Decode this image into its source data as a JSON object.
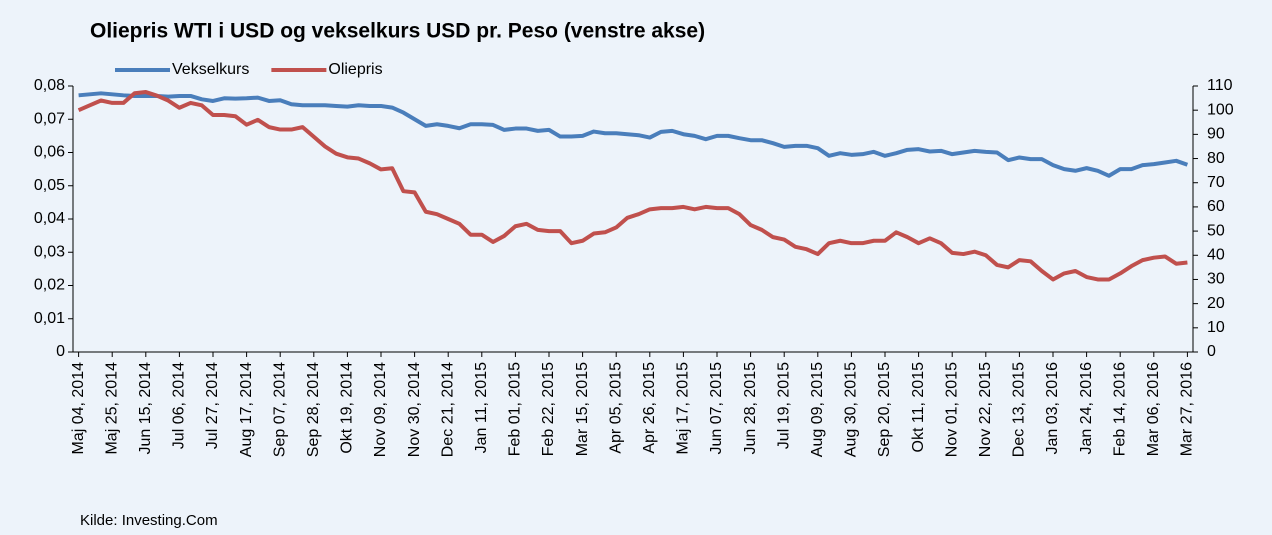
{
  "chart_data": {
    "type": "line",
    "title": "Oliepris WTI i USD og vekselkurs USD pr. Peso (venstre akse)",
    "source": "Kilde: Investing.Com",
    "categories": [
      "Maj 04, 2014",
      null,
      null,
      "Maj 25, 2014",
      null,
      null,
      "Jun 15, 2014",
      null,
      null,
      "Jul 06, 2014",
      null,
      null,
      "Jul 27, 2014",
      null,
      null,
      "Aug 17, 2014",
      null,
      null,
      "Sep 07, 2014",
      null,
      null,
      "Sep 28, 2014",
      null,
      null,
      "Okt 19, 2014",
      null,
      null,
      "Nov 09, 2014",
      null,
      null,
      "Nov 30, 2014",
      null,
      null,
      "Dec 21, 2014",
      null,
      null,
      "Jan 11, 2015",
      null,
      null,
      "Feb 01, 2015",
      null,
      null,
      "Feb 22, 2015",
      null,
      null,
      "Mar 15, 2015",
      null,
      null,
      "Apr 05, 2015",
      null,
      null,
      "Apr 26, 2015",
      null,
      null,
      "Maj 17, 2015",
      null,
      null,
      "Jun 07, 2015",
      null,
      null,
      "Jun 28, 2015",
      null,
      null,
      "Jul 19, 2015",
      null,
      null,
      "Aug 09, 2015",
      null,
      null,
      "Aug 30, 2015",
      null,
      null,
      "Sep 20, 2015",
      null,
      null,
      "Okt 11, 2015",
      null,
      null,
      "Nov 01, 2015",
      null,
      null,
      "Nov 22, 2015",
      null,
      null,
      "Dec 13, 2015",
      null,
      null,
      "Jan 03, 2016",
      null,
      null,
      "Jan 24, 2016",
      null,
      null,
      "Feb 14, 2016",
      null,
      null,
      "Mar 06, 2016",
      null,
      null,
      "Mar 27, 2016"
    ],
    "series": [
      {
        "name": "Vekselkurs",
        "color": "#4a7ebb",
        "values": [
          0.0772,
          0.0775,
          0.0778,
          0.0775,
          0.0772,
          0.077,
          0.077,
          0.077,
          0.0768,
          0.077,
          0.077,
          0.076,
          0.0755,
          0.0763,
          0.0762,
          0.0763,
          0.0765,
          0.0755,
          0.0757,
          0.0745,
          0.0742,
          0.0742,
          0.0742,
          0.074,
          0.0738,
          0.0742,
          0.074,
          0.074,
          0.0735,
          0.072,
          0.07,
          0.068,
          0.0685,
          0.068,
          0.0673,
          0.0685,
          0.0685,
          0.0683,
          0.0668,
          0.0672,
          0.0672,
          0.0665,
          0.0668,
          0.0648,
          0.0648,
          0.065,
          0.0663,
          0.0658,
          0.0658,
          0.0655,
          0.0652,
          0.0645,
          0.0662,
          0.0665,
          0.0655,
          0.065,
          0.064,
          0.065,
          0.065,
          0.0643,
          0.0637,
          0.0637,
          0.0628,
          0.0617,
          0.062,
          0.062,
          0.0613,
          0.059,
          0.0598,
          0.0593,
          0.0595,
          0.0602,
          0.059,
          0.0598,
          0.0608,
          0.061,
          0.0603,
          0.0605,
          0.0595,
          0.06,
          0.0605,
          0.0602,
          0.06,
          0.0577,
          0.0585,
          0.058,
          0.058,
          0.0562,
          0.055,
          0.0545,
          0.0553,
          0.0545,
          0.053,
          0.055,
          0.055,
          0.0562,
          0.0565,
          0.057,
          0.0575,
          0.0563
        ]
      },
      {
        "name": "Oliepris",
        "color": "#c0504d",
        "axis": "y2",
        "values": [
          100,
          102,
          104,
          103,
          103,
          107,
          107.5,
          106,
          104,
          101,
          103,
          102,
          98,
          98,
          97.5,
          94,
          96,
          93,
          92,
          92,
          93,
          89,
          85,
          82,
          80.5,
          80,
          78,
          75.5,
          76,
          66.5,
          66,
          58,
          57,
          55,
          53,
          48.5,
          48.5,
          45.5,
          48,
          52,
          53,
          50.5,
          50,
          50,
          45,
          46,
          49,
          49.5,
          51.5,
          55.5,
          57,
          59,
          59.5,
          59.5,
          60,
          59,
          60,
          59.5,
          59.5,
          57,
          52.5,
          50.5,
          47.5,
          46.5,
          43.5,
          42.5,
          40.5,
          45,
          46,
          45,
          45,
          46,
          46,
          49.5,
          47.5,
          45,
          47,
          45,
          41,
          40.5,
          41.5,
          40,
          36,
          35,
          38,
          37.5,
          33.5,
          30,
          32.5,
          33.5,
          31,
          30,
          30,
          32.5,
          35.5,
          38,
          39,
          39.5,
          36.5,
          37
        ]
      }
    ],
    "ylim": [
      0,
      0.08
    ],
    "yticks": [
      0,
      {
        "value": 0.01,
        "label": "0,01"
      },
      {
        "value": 0.02,
        "label": "0,02"
      },
      {
        "value": 0.03,
        "label": "0,03"
      },
      {
        "value": 0.04,
        "label": "0,04"
      },
      {
        "value": 0.05,
        "label": "0,05"
      },
      {
        "value": 0.06,
        "label": "0,06"
      },
      {
        "value": 0.07,
        "label": "0,07"
      },
      {
        "value": 0.08,
        "label": "0,08"
      }
    ],
    "y2lim": [
      0,
      110
    ],
    "y2ticks": [
      0,
      10,
      20,
      30,
      40,
      50,
      60,
      70,
      80,
      90,
      100,
      110
    ],
    "grid": false,
    "legend": "top"
  }
}
